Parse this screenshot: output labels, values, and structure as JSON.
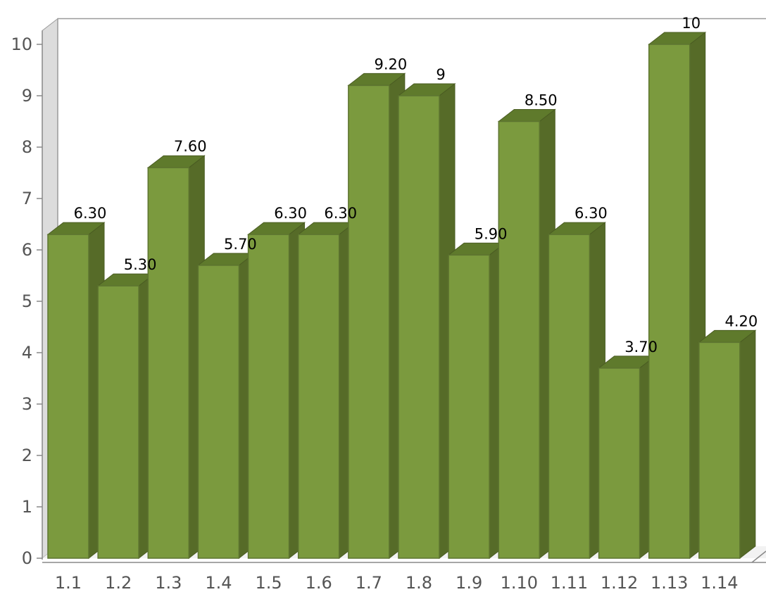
{
  "chart_data": {
    "type": "bar",
    "style": "3d",
    "categories": [
      "1.1",
      "1.2",
      "1.3",
      "1.4",
      "1.5",
      "1.6",
      "1.7",
      "1.8",
      "1.9",
      "1.10",
      "1.11",
      "1.12",
      "1.13",
      "1.14"
    ],
    "values": [
      6.3,
      5.3,
      7.6,
      5.7,
      6.3,
      6.3,
      9.2,
      9,
      5.9,
      8.5,
      6.3,
      3.7,
      10,
      4.2
    ],
    "data_labels": [
      "6.30",
      "5.30",
      "7.60",
      "5.70",
      "6.30",
      "6.30",
      "9.20",
      "9",
      "5.90",
      "8.50",
      "6.30",
      "3.70",
      "10",
      "4.20"
    ],
    "yticks": [
      "0",
      "1",
      "2",
      "3",
      "4",
      "5",
      "6",
      "7",
      "8",
      "9",
      "10"
    ],
    "ylim": [
      0,
      10.5
    ],
    "title": "",
    "xlabel": "",
    "ylabel": "",
    "legend": "none",
    "grid": false
  },
  "colors": {
    "bar_front": "#7b9a3e",
    "bar_top": "#5f7a2c",
    "bar_side": "#566b28",
    "wall": "#dcdcdc",
    "axis": "#888888"
  }
}
